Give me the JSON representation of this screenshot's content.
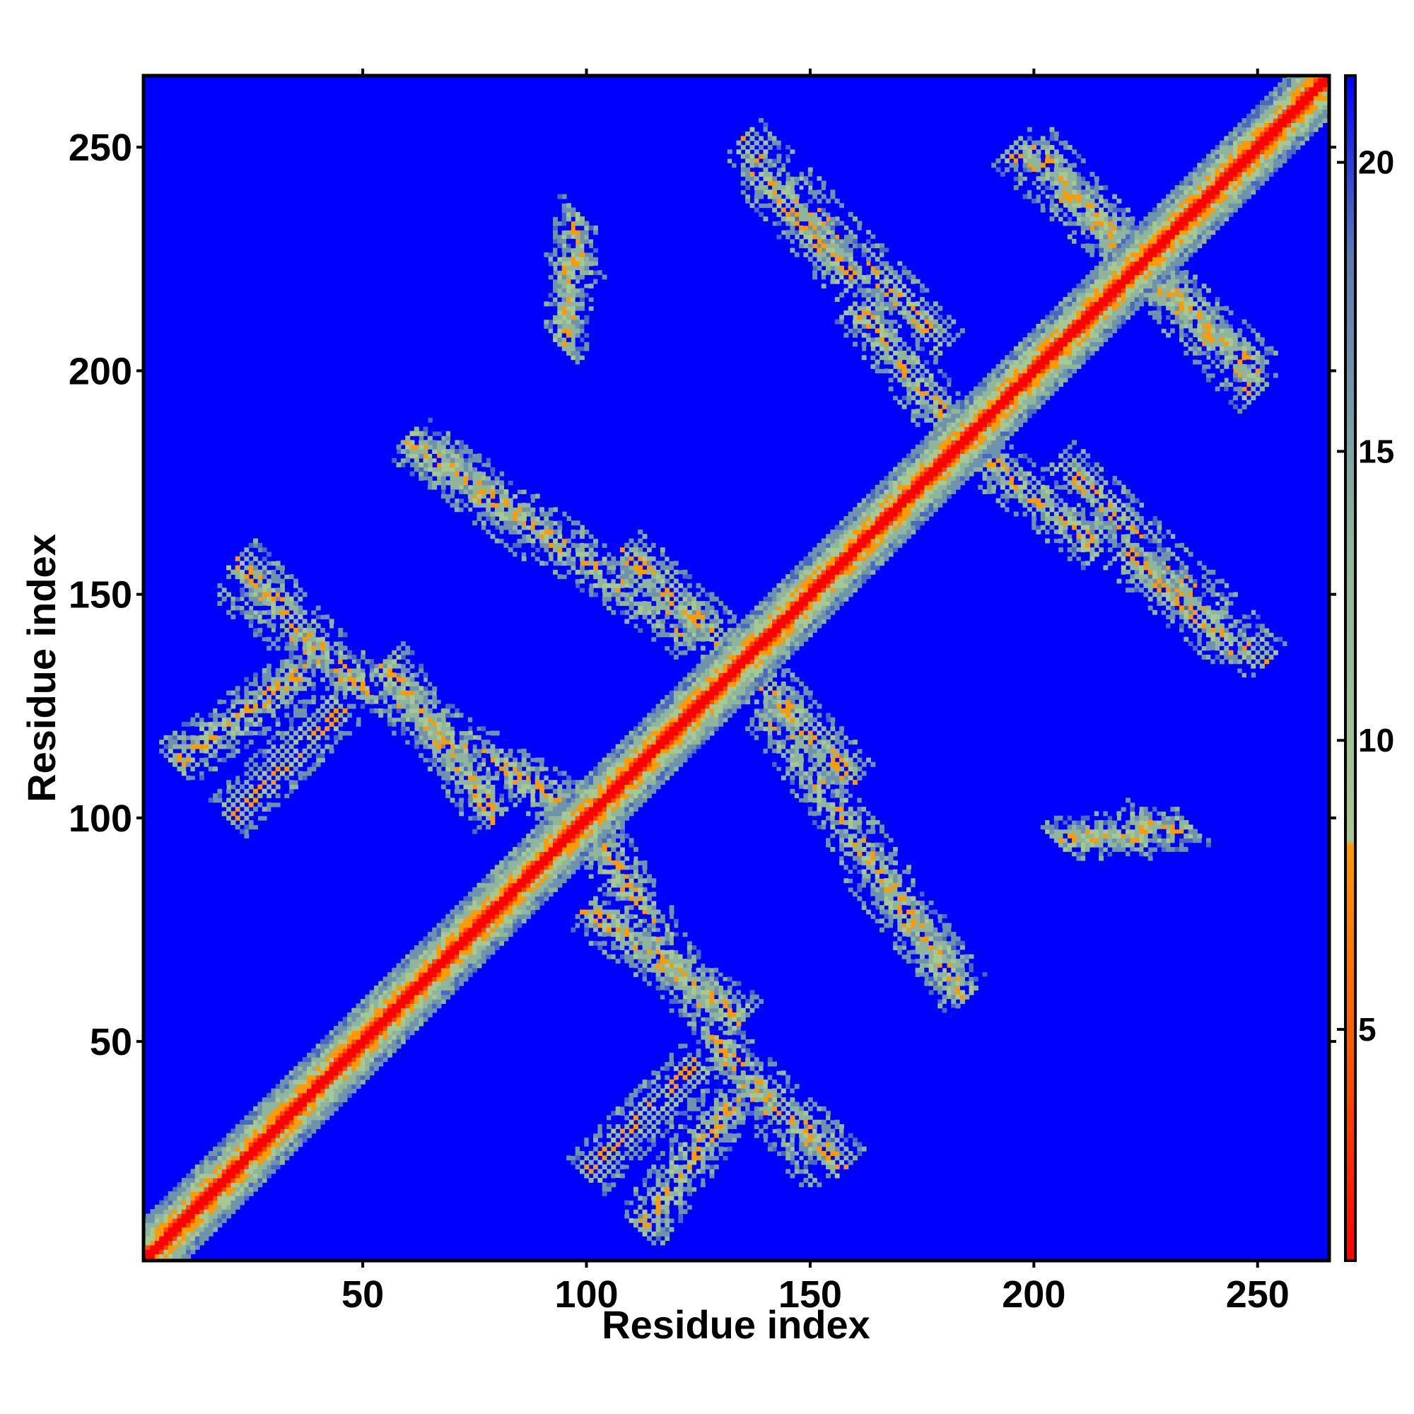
{
  "chart_data": {
    "type": "heatmap",
    "title": "",
    "xlabel": "Residue index",
    "ylabel": "Residue index",
    "xlim": [
      1,
      266
    ],
    "ylim": [
      1,
      266
    ],
    "x_ticks": [
      50,
      100,
      150,
      200,
      250
    ],
    "y_ticks": [
      50,
      100,
      150,
      200,
      250
    ],
    "x_ticks_top": [
      50,
      100,
      150,
      200,
      250
    ],
    "colorbar": {
      "placement": "right",
      "range": [
        1,
        21.5
      ],
      "ticks": [
        5,
        10,
        15,
        20
      ],
      "colors": {
        "low": "#ff0000",
        "mid_low": "#ff8c00",
        "mid": "#a0c890",
        "mid_high": "#5a7ab4",
        "high": "#0000ff"
      }
    },
    "description_of_matrix": {
      "background_value": 21,
      "diagonal_value": 1,
      "contact_bands": [
        {
          "kind": "anti-parallel",
          "from": [
            20,
            154
          ],
          "to": [
            45,
            131
          ]
        },
        {
          "kind": "anti-parallel",
          "from": [
            60,
            185
          ],
          "to": [
            90,
            162
          ]
        },
        {
          "kind": "parallel",
          "from": [
            8,
            112
          ],
          "to": [
            40,
            135
          ]
        },
        {
          "kind": "anti-parallel",
          "from": [
            45,
            133
          ],
          "to": [
            100,
            100
          ]
        },
        {
          "kind": "anti-parallel",
          "from": [
            100,
            80
          ],
          "to": [
            135,
            55
          ]
        },
        {
          "kind": "anti-parallel",
          "from": [
            130,
            48
          ],
          "to": [
            158,
            22
          ]
        },
        {
          "kind": "parallel",
          "from": [
            100,
            20
          ],
          "to": [
            125,
            45
          ]
        },
        {
          "kind": "anti-parallel",
          "from": [
            140,
            125
          ],
          "to": [
            185,
            60
          ]
        },
        {
          "kind": "anti-parallel",
          "from": [
            108,
            160
          ],
          "to": [
            130,
            140
          ]
        },
        {
          "kind": "anti-parallel",
          "from": [
            135,
            252
          ],
          "to": [
            180,
            205
          ]
        },
        {
          "kind": "anti-parallel",
          "from": [
            195,
            250
          ],
          "to": [
            250,
            200
          ]
        },
        {
          "kind": "anti-parallel",
          "from": [
            190,
            180
          ],
          "to": [
            215,
            160
          ]
        },
        {
          "kind": "anti-parallel",
          "from": [
            220,
            160
          ],
          "to": [
            245,
            138
          ]
        },
        {
          "kind": "parallel",
          "from": [
            205,
            95
          ],
          "to": [
            235,
            98
          ]
        },
        {
          "kind": "parallel",
          "from": [
            95,
            222
          ],
          "to": [
            100,
            225
          ]
        }
      ]
    }
  }
}
